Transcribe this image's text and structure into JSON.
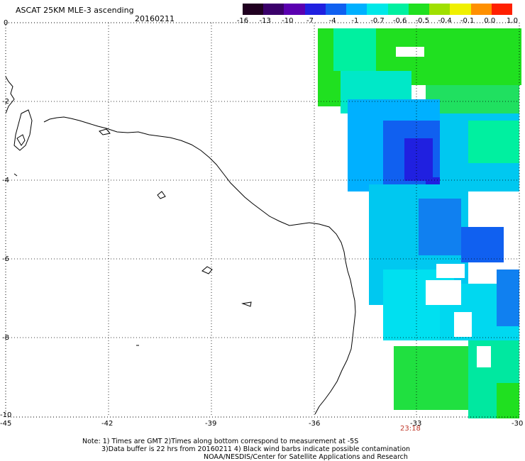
{
  "title": "ASCAT 25KM MLE-3 ascending",
  "date": "20160211",
  "colorbar": {
    "labels": [
      "-16",
      "-13",
      "-10",
      "-7",
      "-4",
      "-1",
      "-0.7",
      "-0.6",
      "-0.5",
      "-0.4",
      "-0.1",
      "0.0",
      "1.0"
    ],
    "colors": [
      "#200020",
      "#3a006a",
      "#5a00b0",
      "#2020e0",
      "#1060f0",
      "#00b0ff",
      "#00e8e8",
      "#00f0a0",
      "#20e020",
      "#a0e000",
      "#f0f000",
      "#ff9000",
      "#ff2000"
    ]
  },
  "axes": {
    "lon_ticks": [
      "-45",
      "-42",
      "-39",
      "-36",
      "-33",
      "-30"
    ],
    "lat_ticks": [
      "0",
      "-2",
      "-4",
      "-6",
      "-8",
      "-10"
    ]
  },
  "pass_time": "23:18",
  "notes": {
    "line1": "Note: 1) Times are GMT 2)Times along bottom correspond to measurement at -5S",
    "line2": "3)Data buffer is 22 hrs from 20160211 4) Black wind barbs indicate possible contamination",
    "line3": "NOAA/NESDIS/Center for Satellite Applications and Research"
  },
  "colors": {
    "coast": "#000000",
    "grid": "#000000",
    "time": "#c0392b"
  }
}
